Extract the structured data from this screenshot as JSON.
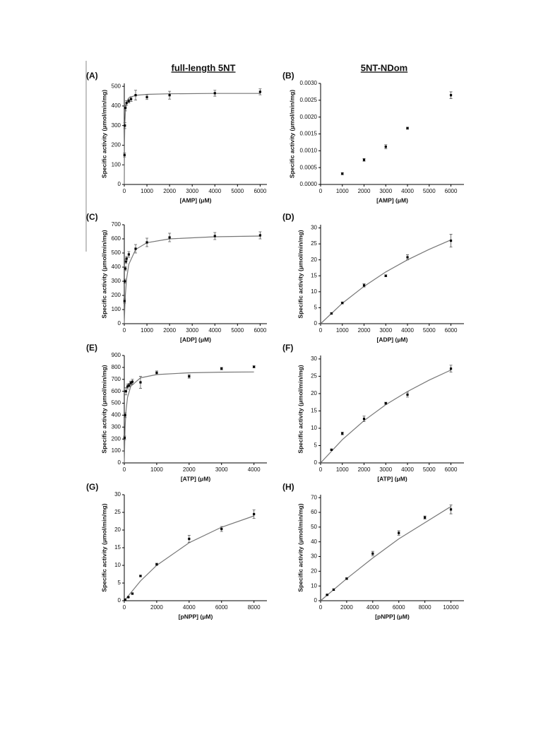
{
  "column_titles": [
    "full-length 5NT",
    "5NT-NDom"
  ],
  "chart_data": [
    {
      "type": "scatter",
      "panel": "(A)",
      "x_label": "[AMP] (μM)",
      "y_label": "Specific activity (μmol/min/mg)",
      "xlim": [
        0,
        6300
      ],
      "xticks": [
        0,
        1000,
        2000,
        3000,
        4000,
        5000,
        6000
      ],
      "ylim": [
        0,
        515
      ],
      "yticks": [
        0,
        100,
        200,
        300,
        400,
        500
      ],
      "points": {
        "x": [
          10,
          25,
          50,
          100,
          200,
          300,
          500,
          1000,
          2000,
          4000,
          6000
        ],
        "values": [
          150,
          300,
          390,
          415,
          425,
          435,
          455,
          445,
          455,
          465,
          472
        ],
        "errors": [
          10,
          15,
          15,
          12,
          10,
          12,
          25,
          12,
          20,
          15,
          15
        ]
      },
      "curve": {
        "x": [
          0,
          10,
          25,
          50,
          100,
          200,
          500,
          1000,
          2000,
          4000,
          6000
        ],
        "values": [
          0,
          211,
          314,
          375,
          415,
          441,
          454,
          459,
          462,
          464,
          464
        ]
      }
    },
    {
      "type": "scatter",
      "panel": "(B)",
      "x_label": "[AMP] (μM)",
      "y_label": "Specific activity (μmol/min/mg)",
      "xlim": [
        0,
        6600
      ],
      "xticks": [
        0,
        1000,
        2000,
        3000,
        4000,
        5000,
        6000
      ],
      "ylim": [
        0,
        0.003
      ],
      "yticks": [
        {
          "value": 0,
          "label": "0.0000"
        },
        {
          "value": 0.0005,
          "label": "0.0005"
        },
        {
          "value": 0.001,
          "label": "0.0010"
        },
        {
          "value": 0.0015,
          "label": "0.0015"
        },
        {
          "value": 0.002,
          "label": "0.0020"
        },
        {
          "value": 0.0025,
          "label": "0.0025"
        },
        {
          "value": 0.003,
          "label": "0.0030"
        }
      ],
      "points": {
        "x": [
          1000,
          2000,
          3000,
          4000,
          6000
        ],
        "values": [
          0.00032,
          0.00073,
          0.00112,
          0.00167,
          0.00265
        ],
        "errors": [
          3e-05,
          4e-05,
          6e-05,
          3e-05,
          0.0001
        ]
      }
    },
    {
      "type": "scatter",
      "panel": "(C)",
      "x_label": "[ADP] (μM)",
      "y_label": "Specific activity (μmol/min/mg)",
      "xlim": [
        0,
        6300
      ],
      "xticks": [
        0,
        1000,
        2000,
        3000,
        4000,
        5000,
        6000
      ],
      "ylim": [
        0,
        700
      ],
      "yticks": [
        0,
        100,
        200,
        300,
        400,
        500,
        600,
        700
      ],
      "points": {
        "x": [
          10,
          25,
          50,
          75,
          100,
          200,
          500,
          1000,
          2000,
          4000,
          6000
        ],
        "values": [
          160,
          300,
          390,
          440,
          460,
          490,
          530,
          575,
          610,
          620,
          625
        ],
        "errors": [
          15,
          15,
          15,
          15,
          15,
          20,
          30,
          30,
          30,
          25,
          25
        ]
      },
      "curve": {
        "x": [
          0,
          25,
          50,
          100,
          200,
          500,
          1000,
          2000,
          4000,
          6000
        ],
        "values": [
          0,
          126,
          210,
          315,
          420,
          525,
          573,
          600,
          615,
          620
        ]
      }
    },
    {
      "type": "scatter",
      "panel": "(D)",
      "x_label": "[ADP] (μM)",
      "y_label": "Specific activity (μmol/min/mg)",
      "xlim": [
        0,
        6600
      ],
      "xticks": [
        0,
        1000,
        2000,
        3000,
        4000,
        5000,
        6000
      ],
      "ylim": [
        0,
        31
      ],
      "yticks": [
        0,
        5,
        10,
        15,
        20,
        25,
        30
      ],
      "points": {
        "x": [
          500,
          1000,
          2000,
          3000,
          4000,
          6000
        ],
        "values": [
          3.2,
          6.5,
          12,
          15,
          20.8,
          26
        ],
        "errors": [
          0.2,
          0.3,
          0.5,
          0.3,
          0.8,
          2
        ]
      },
      "curve": {
        "x": [
          0,
          1000,
          2000,
          3000,
          4000,
          5000,
          6000
        ],
        "values": [
          0,
          6.4,
          11.7,
          16.2,
          20,
          23.3,
          26.25
        ]
      }
    },
    {
      "type": "scatter",
      "panel": "(E)",
      "x_label": "[ATP] (μM)",
      "y_label": "Specific activity (μmol/min/mg)",
      "xlim": [
        0,
        4400
      ],
      "xticks": [
        0,
        1000,
        2000,
        3000,
        4000
      ],
      "ylim": [
        0,
        900
      ],
      "yticks": [
        0,
        100,
        200,
        300,
        400,
        500,
        600,
        700,
        800,
        900
      ],
      "points": {
        "x": [
          10,
          25,
          50,
          100,
          150,
          200,
          250,
          500,
          1000,
          2000,
          3000,
          4000
        ],
        "values": [
          210,
          400,
          600,
          640,
          650,
          670,
          680,
          675,
          755,
          725,
          790,
          805
        ],
        "errors": [
          15,
          20,
          30,
          20,
          15,
          15,
          20,
          50,
          15,
          15,
          10,
          8
        ]
      },
      "curve": {
        "x": [
          0,
          25,
          50,
          100,
          200,
          500,
          1000,
          2000,
          3000,
          4000
        ],
        "values": [
          0,
          296,
          428,
          550,
          642,
          713,
          740,
          755,
          760,
          762
        ]
      }
    },
    {
      "type": "scatter",
      "panel": "(F)",
      "x_label": "[ATP] (μM)",
      "y_label": "Specific activity (μmol/min/mg)",
      "xlim": [
        0,
        6600
      ],
      "xticks": [
        0,
        1000,
        2000,
        3000,
        4000,
        5000,
        6000
      ],
      "ylim": [
        0,
        31
      ],
      "yticks": [
        0,
        5,
        10,
        15,
        20,
        25,
        30
      ],
      "points": {
        "x": [
          500,
          1000,
          2000,
          3000,
          4000,
          6000
        ],
        "values": [
          3.8,
          8.5,
          12.7,
          17.2,
          19.7,
          27.2
        ],
        "errors": [
          0.2,
          0.4,
          0.8,
          0.3,
          0.7,
          1
        ]
      },
      "curve": {
        "x": [
          0,
          1000,
          2000,
          3000,
          4000,
          5000,
          6000
        ],
        "values": [
          0,
          6.7,
          12.2,
          16.8,
          20.6,
          23.9,
          26.8
        ]
      }
    },
    {
      "type": "scatter",
      "panel": "(G)",
      "x_label": "[pNPP] (μM)",
      "y_label": "Specific activity (μmol/min/mg)",
      "xlim": [
        0,
        8800
      ],
      "xticks": [
        0,
        2000,
        4000,
        6000,
        8000
      ],
      "ylim": [
        0,
        30
      ],
      "yticks": [
        0,
        5,
        10,
        15,
        20,
        25,
        30
      ],
      "points": {
        "x": [
          50,
          250,
          500,
          1000,
          2000,
          4000,
          6000,
          8000
        ],
        "values": [
          0.3,
          1,
          2,
          7,
          10.3,
          17.5,
          20.3,
          24.5
        ],
        "errors": [
          0.1,
          0.1,
          0.2,
          0.2,
          0.3,
          1,
          0.7,
          1.2
        ]
      },
      "curve": {
        "x": [
          0,
          1000,
          2000,
          4000,
          6000,
          8000
        ],
        "values": [
          0,
          5.6,
          10,
          16.4,
          20.8,
          24
        ]
      }
    },
    {
      "type": "scatter",
      "panel": "(H)",
      "x_label": "[pNPP] (μM)",
      "y_label": "Specific activity (μmol/min/mg)",
      "xlim": [
        0,
        11000
      ],
      "xticks": [
        0,
        2000,
        4000,
        6000,
        8000,
        10000
      ],
      "ylim": [
        0,
        72
      ],
      "yticks": [
        0,
        10,
        20,
        30,
        40,
        50,
        60,
        70
      ],
      "points": {
        "x": [
          500,
          1000,
          2000,
          4000,
          6000,
          8000,
          10000
        ],
        "values": [
          4,
          7.5,
          15,
          32,
          46,
          56.5,
          62
        ],
        "errors": [
          0.3,
          0.5,
          0.5,
          1.5,
          1.5,
          1,
          3
        ]
      },
      "curve": {
        "x": [
          0,
          2000,
          4000,
          6000,
          8000,
          10000
        ],
        "values": [
          0,
          15,
          29,
          42,
          53,
          64
        ]
      }
    }
  ]
}
